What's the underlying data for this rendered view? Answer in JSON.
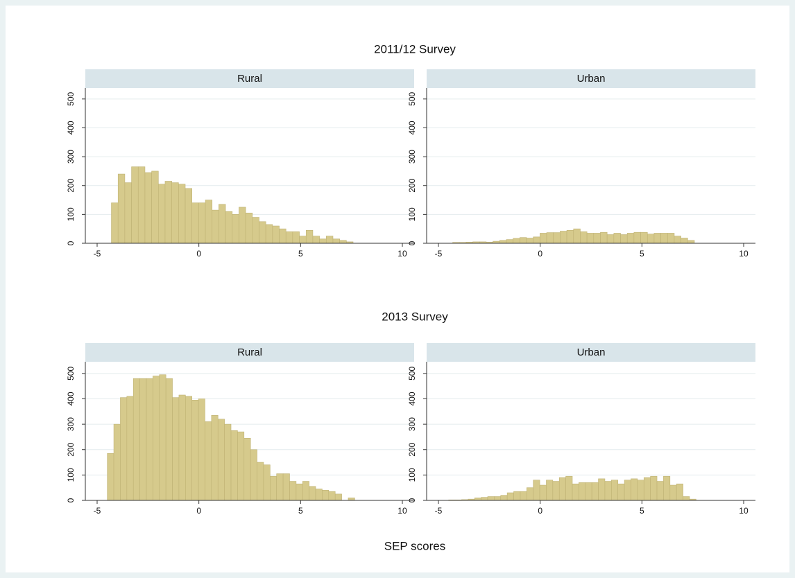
{
  "chart_data": [
    {
      "type": "histogram",
      "title": "Rural",
      "color": "#d6ca8c",
      "xlim": [
        -5.58,
        10.58
      ],
      "ylim": [
        0,
        538
      ],
      "xticks": [
        -5,
        0,
        5,
        10
      ],
      "yticks": [
        0,
        100,
        200,
        300,
        400,
        500
      ],
      "grid": true,
      "bins": [
        -4.3,
        -3.97,
        -3.64,
        -3.31,
        -2.98,
        -2.65,
        -2.32,
        -1.99,
        -1.66,
        -1.33,
        -1,
        -0.67,
        -0.34,
        -0.01,
        0.32,
        0.65,
        0.98,
        1.31,
        1.64,
        1.97,
        2.3,
        2.63,
        2.96,
        3.29,
        3.62,
        3.95,
        4.28,
        4.61,
        4.94,
        5.27,
        5.6,
        5.93,
        6.26,
        6.59,
        6.92,
        7.25,
        7.58,
        7.91
      ],
      "values": [
        140,
        240,
        210,
        265,
        265,
        245,
        250,
        205,
        215,
        210,
        205,
        190,
        140,
        140,
        150,
        115,
        135,
        110,
        100,
        125,
        105,
        90,
        75,
        65,
        60,
        50,
        40,
        40,
        25,
        45,
        25,
        15,
        25,
        15,
        10,
        5,
        0
      ]
    },
    {
      "type": "histogram",
      "title": "Urban",
      "color": "#d6ca8c",
      "xlim": [
        -5.58,
        10.58
      ],
      "ylim": [
        0,
        538
      ],
      "xticks": [
        -5,
        0,
        5,
        10
      ],
      "yticks": [
        0,
        100,
        200,
        300,
        400,
        500
      ],
      "grid": true,
      "bins": [
        -4.3,
        -3.97,
        -3.64,
        -3.31,
        -2.98,
        -2.65,
        -2.32,
        -1.99,
        -1.66,
        -1.33,
        -1,
        -0.67,
        -0.34,
        -0.01,
        0.32,
        0.65,
        0.98,
        1.31,
        1.64,
        1.97,
        2.3,
        2.63,
        2.96,
        3.29,
        3.62,
        3.95,
        4.28,
        4.61,
        4.94,
        5.27,
        5.6,
        5.93,
        6.26,
        6.59,
        6.92,
        7.25,
        7.58,
        7.91
      ],
      "values": [
        3,
        3,
        4,
        5,
        5,
        4,
        7,
        10,
        13,
        17,
        20,
        18,
        22,
        35,
        37,
        37,
        42,
        45,
        50,
        40,
        35,
        35,
        38,
        30,
        35,
        30,
        35,
        38,
        38,
        32,
        35,
        35,
        35,
        25,
        18,
        10,
        0
      ]
    },
    {
      "type": "histogram",
      "title": "Rural",
      "color": "#d6ca8c",
      "xlim": [
        -5.58,
        10.58
      ],
      "ylim": [
        0,
        546
      ],
      "xticks": [
        -5,
        0,
        5,
        10
      ],
      "yticks": [
        0,
        100,
        200,
        300,
        400,
        500
      ],
      "grid": true,
      "bins": [
        -4.5,
        -4.18,
        -3.86,
        -3.54,
        -3.22,
        -2.9,
        -2.58,
        -2.26,
        -1.94,
        -1.62,
        -1.3,
        -0.98,
        -0.66,
        -0.34,
        -0.02,
        0.3,
        0.62,
        0.94,
        1.26,
        1.58,
        1.9,
        2.22,
        2.54,
        2.86,
        3.18,
        3.5,
        3.82,
        4.14,
        4.46,
        4.78,
        5.1,
        5.42,
        5.74,
        6.06,
        6.38,
        6.7,
        7.02,
        7.34,
        7.66
      ],
      "values": [
        185,
        300,
        405,
        410,
        480,
        480,
        480,
        490,
        495,
        480,
        405,
        415,
        410,
        395,
        400,
        310,
        335,
        320,
        300,
        275,
        270,
        245,
        200,
        150,
        140,
        95,
        105,
        105,
        75,
        65,
        75,
        55,
        45,
        40,
        35,
        25,
        0,
        10
      ]
    },
    {
      "type": "histogram",
      "title": "Urban",
      "color": "#d6ca8c",
      "xlim": [
        -5.58,
        10.58
      ],
      "ylim": [
        0,
        546
      ],
      "xticks": [
        -5,
        0,
        5,
        10
      ],
      "yticks": [
        0,
        100,
        200,
        300,
        400,
        500
      ],
      "grid": true,
      "bins": [
        -4.5,
        -4.18,
        -3.86,
        -3.54,
        -3.22,
        -2.9,
        -2.58,
        -2.26,
        -1.94,
        -1.62,
        -1.3,
        -0.98,
        -0.66,
        -0.34,
        -0.02,
        0.3,
        0.62,
        0.94,
        1.26,
        1.58,
        1.9,
        2.22,
        2.54,
        2.86,
        3.18,
        3.5,
        3.82,
        4.14,
        4.46,
        4.78,
        5.1,
        5.42,
        5.74,
        6.06,
        6.38,
        6.7,
        7.02,
        7.34,
        7.66
      ],
      "values": [
        2,
        2,
        3,
        5,
        10,
        12,
        15,
        15,
        20,
        30,
        35,
        35,
        50,
        80,
        60,
        80,
        75,
        90,
        95,
        65,
        70,
        70,
        70,
        85,
        75,
        80,
        65,
        80,
        85,
        80,
        90,
        95,
        75,
        95,
        60,
        65,
        15,
        5
      ]
    }
  ],
  "row_titles": [
    "2011/12 Survey",
    "2013 Survey"
  ],
  "xlabel": "SEP scores"
}
